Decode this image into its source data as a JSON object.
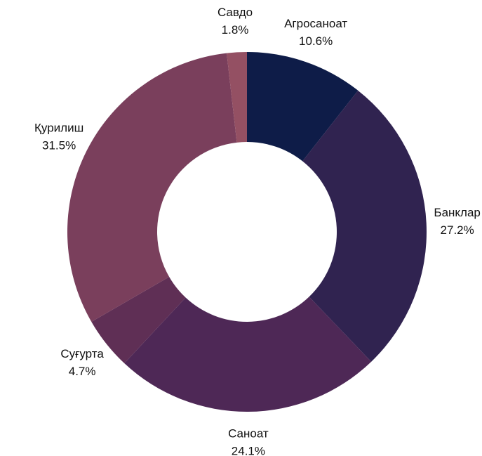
{
  "chart_data": {
    "type": "donut",
    "categories": [
      "Агросаноат",
      "Банклар",
      "Саноат",
      "Суғурта",
      "Қурилиш",
      "Савдо"
    ],
    "values": [
      10.6,
      27.2,
      24.1,
      4.7,
      31.5,
      1.8
    ],
    "value_labels": [
      "10.6%",
      "27.2%",
      "24.1%",
      "4.7%",
      "31.5%",
      "1.8%"
    ],
    "colors": [
      "#0e1c48",
      "#302350",
      "#4e2856",
      "#5f2f55",
      "#7a3f5c",
      "#945063"
    ]
  }
}
